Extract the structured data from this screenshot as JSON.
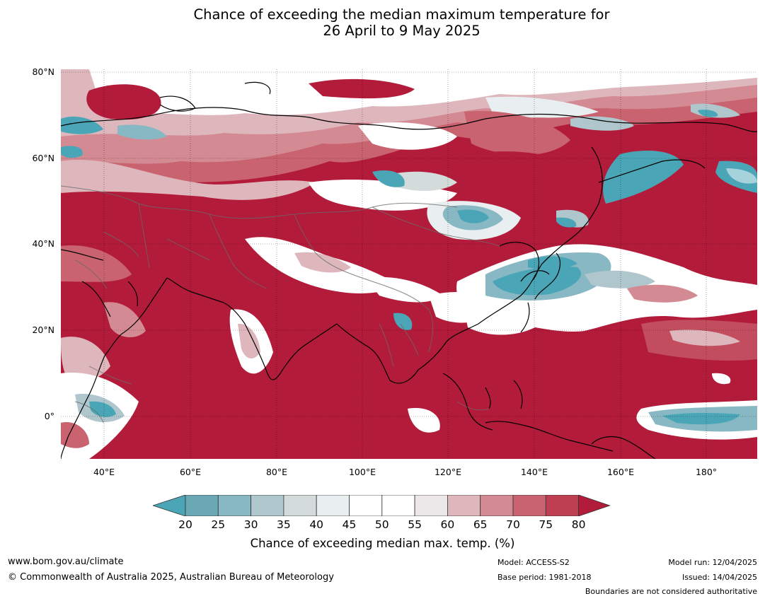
{
  "title": {
    "line1": "Chance of exceeding the median maximum temperature for",
    "line2": "26 April to 9 May 2025"
  },
  "map": {
    "lon_range": [
      30,
      191
    ],
    "lat_range": [
      -10,
      80
    ],
    "lat_ticks": [
      {
        "value": 80,
        "label": "80°N"
      },
      {
        "value": 60,
        "label": "60°N"
      },
      {
        "value": 40,
        "label": "40°N"
      },
      {
        "value": 20,
        "label": "20°N"
      },
      {
        "value": 0,
        "label": "0°"
      }
    ],
    "lon_ticks": [
      {
        "value": 40,
        "label": "40°E"
      },
      {
        "value": 60,
        "label": "60°E"
      },
      {
        "value": 80,
        "label": "80°E"
      },
      {
        "value": 100,
        "label": "100°E"
      },
      {
        "value": 120,
        "label": "120°E"
      },
      {
        "value": 140,
        "label": "140°E"
      },
      {
        "value": 160,
        "label": "160°E"
      },
      {
        "value": 180,
        "label": "180°"
      }
    ],
    "background_class_color": "#b31b3a"
  },
  "colorbar": {
    "labels": [
      "20",
      "25",
      "30",
      "35",
      "40",
      "45",
      "50",
      "55",
      "60",
      "65",
      "70",
      "75",
      "80"
    ],
    "colors": [
      "#6aa8b5",
      "#88b8c3",
      "#afc6cc",
      "#d4dbdb",
      "#e9eef0",
      "#ffffff",
      "#ffffff",
      "#ece8ea",
      "#deb7bd",
      "#d38a93",
      "#c9636f",
      "#bd3f51"
    ],
    "under_color": "#4aa5b6",
    "over_color": "#b31b3a",
    "title": "Chance of exceeding median max. temp. (%)"
  },
  "footer": {
    "website": "www.bom.gov.au/climate",
    "copyright": "© Commonwealth of Australia 2025, Australian Bureau of Meteorology",
    "model": "Model: ACCESS-S2",
    "base_period": "Base period: 1981-2018",
    "model_run": "Model run: 12/04/2025",
    "issued": "Issued: 14/04/2025",
    "disclaimer": "Boundaries are not considered authoritative"
  }
}
